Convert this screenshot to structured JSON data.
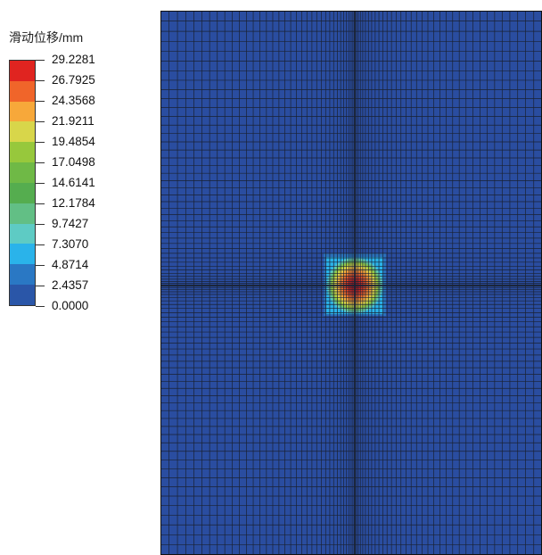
{
  "legend": {
    "title": "滑动位移/mm",
    "levels": [
      "29.2281",
      "26.7925",
      "24.3568",
      "21.9211",
      "19.4854",
      "17.0498",
      "14.6141",
      "12.1784",
      "9.7427",
      "7.3070",
      "4.8714",
      "2.4357",
      "0.0000"
    ],
    "colors": [
      "#e02420",
      "#f0652a",
      "#f7a83a",
      "#d8d64a",
      "#97c83c",
      "#6fb946",
      "#55ad4f",
      "#62bf85",
      "#5ecbc4",
      "#2ab3ea",
      "#2a78c4",
      "#2a56a8"
    ]
  },
  "contour": {
    "background_color": "#2a4da0",
    "mesh_line_color": "#1a2233",
    "max_value_mm": 29.2281,
    "min_value_mm": 0.0
  }
}
